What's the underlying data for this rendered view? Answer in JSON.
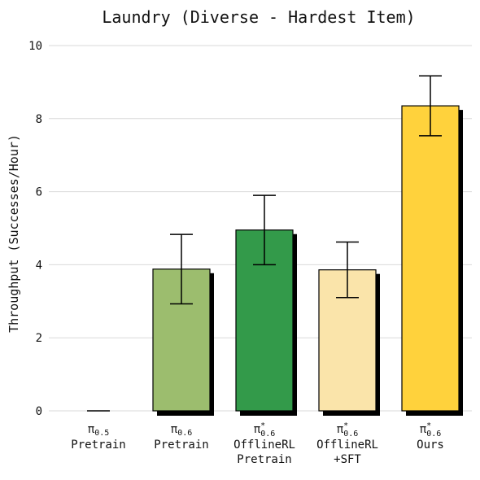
{
  "chart_data": {
    "type": "bar",
    "title": "Laundry (Diverse - Hardest Item)",
    "ylabel": "Throughput (Successes/Hour)",
    "xlabel": "",
    "ylim": [
      0,
      10
    ],
    "yticks": [
      0,
      2,
      4,
      6,
      8,
      10
    ],
    "grid": true,
    "categories": [
      {
        "base": "π",
        "sup": "",
        "sub": "0.5",
        "lines": [
          "Pretrain"
        ]
      },
      {
        "base": "π",
        "sup": "",
        "sub": "0.6",
        "lines": [
          "Pretrain"
        ]
      },
      {
        "base": "π",
        "sup": "*",
        "sub": "0.6",
        "lines": [
          "OfflineRL",
          "Pretrain"
        ]
      },
      {
        "base": "π",
        "sup": "*",
        "sub": "0.6",
        "lines": [
          "OfflineRL",
          "+SFT"
        ]
      },
      {
        "base": "π",
        "sup": "*",
        "sub": "0.6",
        "lines": [
          "Ours"
        ]
      }
    ],
    "values": [
      0.0,
      3.88,
      4.95,
      3.86,
      8.35
    ],
    "errors": [
      0.0,
      0.95,
      0.95,
      0.76,
      0.82
    ],
    "colors": [
      "#9cbd6e",
      "#9cbd6e",
      "#339a4a",
      "#fae4aa",
      "#ffd23c"
    ]
  }
}
